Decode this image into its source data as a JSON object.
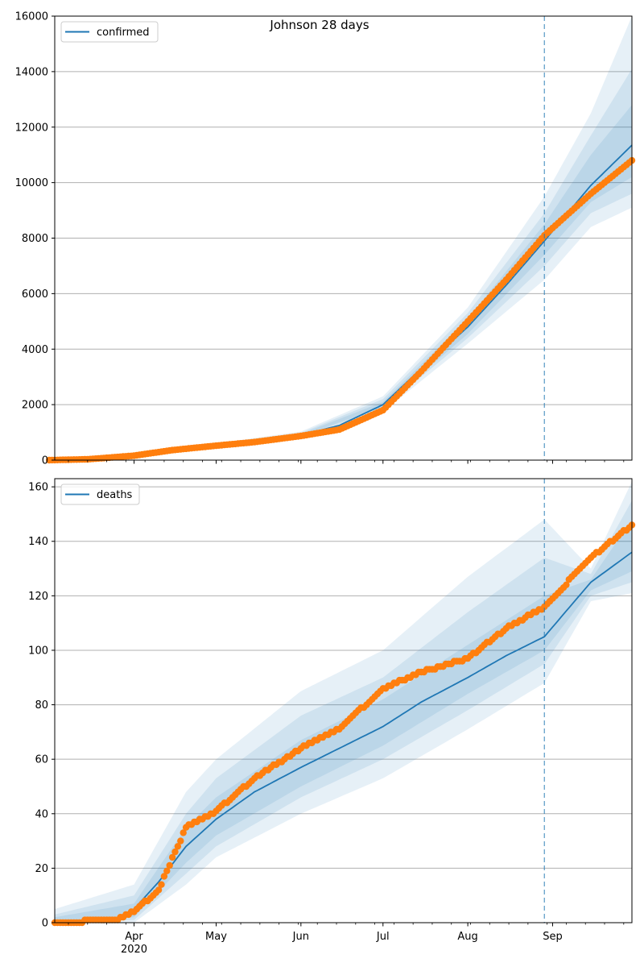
{
  "chart_data": [
    {
      "type": "line",
      "title": "Johnson 28 days",
      "xlabel": "",
      "ylabel": "",
      "ylim": [
        0,
        16000
      ],
      "yticks": [
        0,
        2000,
        4000,
        6000,
        8000,
        10000,
        12000,
        14000,
        16000
      ],
      "grid": "horizontal",
      "legend_position": "top-left",
      "series": [
        {
          "name": "confirmed",
          "kind": "model-median",
          "x": [
            "2020-03-01",
            "2020-03-15",
            "2020-04-01",
            "2020-04-15",
            "2020-05-01",
            "2020-05-15",
            "2020-06-01",
            "2020-06-15",
            "2020-07-01",
            "2020-07-15",
            "2020-08-01",
            "2020-08-15",
            "2020-08-29",
            "2020-09-15",
            "2020-09-30"
          ],
          "values": [
            10,
            30,
            170,
            380,
            530,
            680,
            900,
            1250,
            2000,
            3300,
            4800,
            6300,
            7900,
            9900,
            11350
          ]
        },
        {
          "name": "",
          "kind": "observed",
          "x": [
            "2020-03-01",
            "2020-03-15",
            "2020-04-01",
            "2020-04-15",
            "2020-05-01",
            "2020-05-15",
            "2020-06-01",
            "2020-06-15",
            "2020-07-01",
            "2020-07-15",
            "2020-08-01",
            "2020-08-15",
            "2020-08-29",
            "2020-09-15",
            "2020-09-30"
          ],
          "values": [
            0,
            30,
            160,
            360,
            520,
            650,
            870,
            1100,
            1800,
            3200,
            5000,
            6500,
            8100,
            9600,
            10800
          ]
        }
      ],
      "bands": {
        "x": [
          "2020-03-01",
          "2020-04-01",
          "2020-05-01",
          "2020-06-01",
          "2020-07-01",
          "2020-08-01",
          "2020-08-29",
          "2020-09-15",
          "2020-09-30"
        ],
        "levels": [
          {
            "lower": [
              0,
              150,
              480,
              800,
              1750,
              4200,
              6500,
              8400,
              9100
            ],
            "upper": [
              60,
              200,
              600,
              1030,
              2300,
              5500,
              9500,
              12500,
              16000
            ]
          },
          {
            "lower": [
              2,
              155,
              495,
              840,
              1850,
              4400,
              7000,
              8900,
              9600
            ],
            "upper": [
              40,
              190,
              570,
              980,
              2200,
              5300,
              8900,
              11700,
              14100
            ]
          },
          {
            "lower": [
              4,
              160,
              505,
              870,
              1910,
              4550,
              7400,
              9300,
              10200
            ],
            "upper": [
              25,
              180,
              555,
              940,
              2100,
              5100,
              8500,
              11000,
              12800
            ]
          }
        ]
      },
      "vline_x": "2020-08-29"
    },
    {
      "type": "line",
      "title": "",
      "xlabel": "",
      "ylabel": "",
      "ylim": [
        0,
        163
      ],
      "yticks": [
        0,
        20,
        40,
        60,
        80,
        100,
        120,
        140,
        160
      ],
      "xticks": [
        {
          "date": "2020-04-01",
          "label": "Apr",
          "sublabel": "2020"
        },
        {
          "date": "2020-05-01",
          "label": "May"
        },
        {
          "date": "2020-06-01",
          "label": "Jun"
        },
        {
          "date": "2020-07-01",
          "label": "Jul"
        },
        {
          "date": "2020-08-01",
          "label": "Aug"
        },
        {
          "date": "2020-09-01",
          "label": "Sep"
        }
      ],
      "xlim": [
        "2020-03-03",
        "2020-09-30"
      ],
      "grid": "horizontal",
      "legend_position": "top-left",
      "series": [
        {
          "name": "deaths",
          "kind": "model-median",
          "x": [
            "2020-03-03",
            "2020-03-25",
            "2020-04-01",
            "2020-04-10",
            "2020-04-20",
            "2020-05-01",
            "2020-05-15",
            "2020-06-01",
            "2020-06-15",
            "2020-07-01",
            "2020-07-15",
            "2020-08-01",
            "2020-08-15",
            "2020-08-29",
            "2020-09-15",
            "2020-09-30"
          ],
          "values": [
            0,
            1,
            5,
            15,
            28,
            38,
            48,
            57,
            64,
            72,
            81,
            90,
            98,
            105,
            125,
            136
          ]
        },
        {
          "name": "",
          "kind": "observed",
          "x": [
            "2020-03-03",
            "2020-03-25",
            "2020-04-01",
            "2020-04-10",
            "2020-04-20",
            "2020-05-01",
            "2020-05-15",
            "2020-06-01",
            "2020-06-15",
            "2020-07-01",
            "2020-07-15",
            "2020-08-01",
            "2020-08-15",
            "2020-08-29",
            "2020-09-15",
            "2020-09-30"
          ],
          "values": [
            0,
            1,
            4,
            12,
            35,
            41,
            53,
            64,
            71,
            86,
            92,
            97,
            108,
            116,
            134,
            146
          ]
        }
      ],
      "bands": {
        "x": [
          "2020-03-03",
          "2020-04-01",
          "2020-04-20",
          "2020-05-01",
          "2020-06-01",
          "2020-07-01",
          "2020-08-01",
          "2020-08-29",
          "2020-09-15",
          "2020-09-30"
        ],
        "levels": [
          {
            "lower": [
              0,
              0,
              14,
              24,
              40,
              53,
              71,
              88,
              118,
              121
            ],
            "upper": [
              5,
              14,
              48,
              60,
              85,
              100,
              127,
              148,
              130,
              162
            ]
          },
          {
            "lower": [
              0,
              1,
              18,
              28,
              46,
              60,
              78,
              95,
              120,
              125
            ],
            "upper": [
              3,
              10,
              40,
              53,
              76,
              90,
              114,
              134,
              128,
              155
            ]
          },
          {
            "lower": [
              0,
              2,
              22,
              32,
              50,
              65,
              84,
              100,
              122,
              129
            ],
            "upper": [
              2,
              7,
              35,
              46,
              67,
              82,
              102,
              120,
              126,
              148
            ]
          }
        ]
      },
      "vline_x": "2020-08-29"
    }
  ],
  "colors": {
    "band": "#1f77b4",
    "median": "#1f77b4",
    "observed": "#ff7f0e",
    "grid": "#b0b0b0",
    "vline": "#1f77b4"
  }
}
